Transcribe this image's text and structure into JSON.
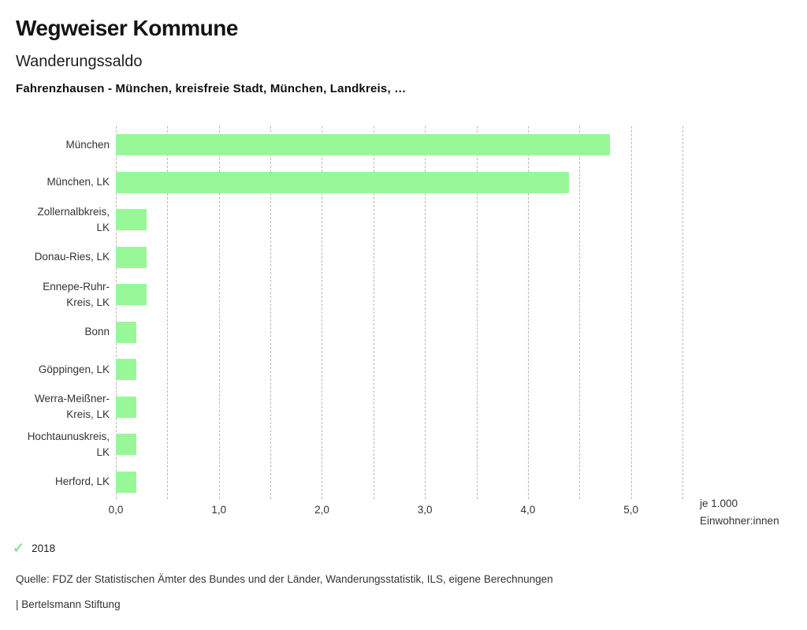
{
  "header": {
    "title": "Wegweiser Kommune",
    "subtitle": "Wanderungssaldo",
    "context": "Fahrenzhausen - München, kreisfreie Stadt, München, Landkreis, …"
  },
  "chart_data": {
    "type": "bar",
    "orientation": "horizontal",
    "title": "Wanderungssaldo",
    "categories": [
      "München",
      "München, LK",
      "Zollernalbkreis, LK",
      "Donau-Ries, LK",
      "Ennepe-Ruhr-Kreis, LK",
      "Bonn",
      "Göppingen, LK",
      "Werra-Meißner-Kreis, LK",
      "Hochtaunuskreis, LK",
      "Herford, LK"
    ],
    "category_display": [
      "München",
      "München, LK",
      "Zollernalbkreis,\nLK",
      "Donau-Ries, LK",
      "Ennepe-Ruhr-\nKreis, LK",
      "Bonn",
      "Göppingen, LK",
      "Werra-Meißner-\nKreis, LK",
      "Hochtaunuskreis,\nLK",
      "Herford, LK"
    ],
    "series": [
      {
        "name": "2018",
        "values": [
          4.8,
          4.4,
          0.3,
          0.3,
          0.3,
          0.2,
          0.2,
          0.2,
          0.2,
          0.2
        ]
      }
    ],
    "xlim": [
      0,
      5.5
    ],
    "grid": true,
    "grid_step": 0.5,
    "x_ticks": [
      {
        "value": 0,
        "label": "0,0"
      },
      {
        "value": 1,
        "label": "1,0"
      },
      {
        "value": 2,
        "label": "2,0"
      },
      {
        "value": 3,
        "label": "3,0"
      },
      {
        "value": 4,
        "label": "4,0"
      },
      {
        "value": 5,
        "label": "5,0"
      }
    ],
    "xlabel_lines": [
      "je 1.000",
      "Einwohner:innen"
    ],
    "bar_color": "#98f898",
    "grid_color": "#b9b9b9",
    "legend_position": "bottom-left"
  },
  "legend": {
    "check_icon": "✓",
    "check_color": "#8fe08f",
    "label": "2018"
  },
  "footer": {
    "source": "Quelle: FDZ der Statistischen Ämter des Bundes und der Länder, Wanderungsstatistik, ILS, eigene Berechnungen",
    "attribution": "| Bertelsmann Stiftung"
  }
}
